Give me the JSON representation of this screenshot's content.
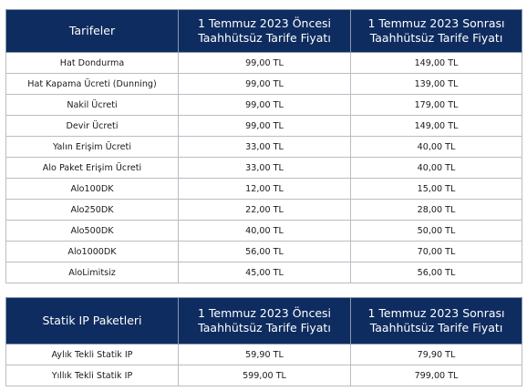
{
  "table1": {
    "headers": [
      "Tarifeler",
      "1 Temmuz 2023 Öncesi\nTaahhütsüz Tarife Fiyatı",
      "1 Temmuz 2023 Sonrası\nTaahhütsüz Tarife Fiyatı"
    ],
    "header_lines": {
      "col1": "Tarifeler",
      "col2_l1": "1 Temmuz 2023 Öncesi",
      "col2_l2": "Taahhütsüz Tarife Fiyatı",
      "col3_l1": "1 Temmuz 2023 Sonrası",
      "col3_l2": "Taahhütsüz Tarife Fiyatı"
    },
    "rows": [
      {
        "name": "Hat Dondurma",
        "before": "99,00 TL",
        "after": "149,00 TL"
      },
      {
        "name": "Hat Kapama Ücreti (Dunning)",
        "before": "99,00 TL",
        "after": "139,00 TL"
      },
      {
        "name": "Nakil Ücreti",
        "before": "99,00 TL",
        "after": "179,00 TL"
      },
      {
        "name": "Devir Ücreti",
        "before": "99,00 TL",
        "after": "149,00 TL"
      },
      {
        "name": "Yalın Erişim Ücreti",
        "before": "33,00 TL",
        "after": "40,00 TL"
      },
      {
        "name": "Alo Paket Erişim Ücreti",
        "before": "33,00 TL",
        "after": "40,00 TL"
      },
      {
        "name": "Alo100DK",
        "before": "12,00 TL",
        "after": "15,00 TL"
      },
      {
        "name": "Alo250DK",
        "before": "22,00 TL",
        "after": "28,00 TL"
      },
      {
        "name": "Alo500DK",
        "before": "40,00 TL",
        "after": "50,00 TL"
      },
      {
        "name": "Alo1000DK",
        "before": "56,00 TL",
        "after": "70,00 TL"
      },
      {
        "name": "AloLimitsiz",
        "before": "45,00 TL",
        "after": "56,00 TL"
      }
    ]
  },
  "table2": {
    "header_lines": {
      "col1": "Statik IP Paketleri",
      "col2_l1": "1 Temmuz 2023 Öncesi",
      "col2_l2": "Taahhütsüz Tarife Fiyatı",
      "col3_l1": "1 Temmuz 2023 Sonrası",
      "col3_l2": "Taahhütsüz Tarife Fiyatı"
    },
    "rows": [
      {
        "name": "Aylık Tekli Statik IP",
        "before": "59,90 TL",
        "after": "79,90 TL"
      },
      {
        "name": "Yıllık Tekli Statik IP",
        "before": "599,00 TL",
        "after": "799,00 TL"
      }
    ]
  },
  "colors": {
    "header_bg": "#0e2c5f",
    "header_text": "#ffffff",
    "border": "#b9bcc3"
  }
}
